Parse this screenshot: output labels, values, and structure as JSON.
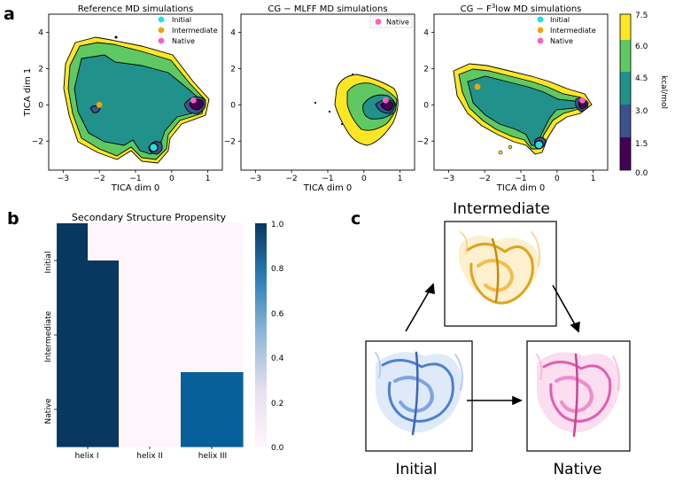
{
  "panel_labels": {
    "a": "a",
    "b": "b",
    "c": "c"
  },
  "colors": {
    "initial": "#22e0e6",
    "intermediate": "#f0a500",
    "native": "#ff5fbf",
    "heat_high": "#08375f",
    "heat_mid": "#08609a",
    "heat_low": "#fff5fa",
    "viridis": [
      "#440154",
      "#3b528b",
      "#21918c",
      "#5ec962",
      "#fde725"
    ]
  },
  "tica_common": {
    "xlabel": "TICA dim 0",
    "ylabel": "TICA dim 1",
    "xticks": [
      "−3",
      "−2",
      "−1",
      "0",
      "1"
    ],
    "yticks": [
      "4",
      "2",
      "0",
      "−2"
    ],
    "legend": {
      "initial": "Initial",
      "intermediate": "Intermediate",
      "native": "Native"
    }
  },
  "colorbar": {
    "label": "kcal/mol",
    "ticks": [
      "7.5",
      "6.0",
      "4.5",
      "3.0",
      "1.5",
      "0.0"
    ]
  },
  "chart_data": [
    {
      "type": "contour",
      "title": "Reference MD simulations",
      "xlabel": "TICA dim 0",
      "ylabel": "TICA dim 1",
      "xlim": [
        -3.4,
        1.4
      ],
      "ylim": [
        -3.6,
        5.0
      ],
      "colorbar_range_kcal_per_mol": [
        0.0,
        7.5
      ],
      "points": [
        {
          "label": "Initial",
          "x": -0.5,
          "y": -2.35
        },
        {
          "label": "Intermediate",
          "x": -2.0,
          "y": 0.0
        },
        {
          "label": "Native",
          "x": 0.6,
          "y": 0.25
        }
      ]
    },
    {
      "type": "contour",
      "title": "CG − MLFF MD simulations",
      "xlabel": "TICA dim 0",
      "xlim": [
        -3.4,
        1.4
      ],
      "ylim": [
        -3.6,
        5.0
      ],
      "points": [
        {
          "label": "Native",
          "x": 0.6,
          "y": 0.25
        }
      ]
    },
    {
      "type": "contour",
      "title_main": "CG − F",
      "title_sup": "3",
      "title_end": "low MD simulations",
      "xlabel": "TICA dim 0",
      "xlim": [
        -3.4,
        1.4
      ],
      "ylim": [
        -3.6,
        5.0
      ],
      "points": [
        {
          "label": "Initial",
          "x": -0.5,
          "y": -2.2
        },
        {
          "label": "Intermediate",
          "x": -2.2,
          "y": 1.0
        },
        {
          "label": "Native",
          "x": 0.7,
          "y": 0.25
        }
      ]
    },
    {
      "type": "heatmap",
      "title": "Secondary Structure Propensity",
      "columns": [
        "helix I",
        "helix II",
        "helix III"
      ],
      "rows": [
        "Initial",
        "Intermediate",
        "Native"
      ],
      "cells": [
        [
          1.0,
          0.0,
          0.0,
          0.0,
          0.0,
          0.0
        ],
        [
          1.0,
          1.0,
          0.0,
          0.0,
          0.0,
          0.0
        ],
        [
          1.0,
          1.0,
          0.0,
          0.0,
          0.0,
          0.0
        ],
        [
          1.0,
          1.0,
          0.0,
          0.0,
          0.0,
          0.0
        ],
        [
          1.0,
          1.0,
          0.0,
          0.0,
          0.8,
          0.8
        ],
        [
          1.0,
          1.0,
          0.0,
          0.0,
          0.8,
          0.8
        ]
      ],
      "colorbar": {
        "range": [
          0.0,
          1.0
        ],
        "ticks": [
          "1.0",
          "0.8",
          "0.6",
          "0.4",
          "0.2",
          "0.0"
        ]
      }
    }
  ],
  "structures": {
    "initial": "Initial",
    "intermediate": "Intermediate",
    "native": "Native"
  }
}
